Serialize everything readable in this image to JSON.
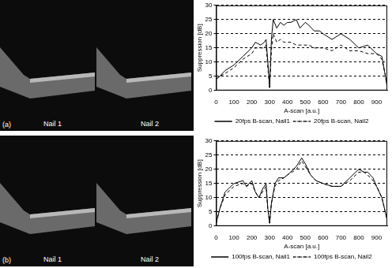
{
  "images": [
    {
      "panel": "(a)",
      "labels": [
        "Nail 1",
        "Nail 2"
      ]
    },
    {
      "panel": "(b)",
      "labels": [
        "Nail 1",
        "Nail 2"
      ]
    }
  ],
  "chart_data": [
    {
      "type": "line",
      "x_label": "A-scan [a.u.]",
      "y_label": "Suppression [dB]",
      "x": [
        0,
        20,
        50,
        100,
        150,
        200,
        220,
        250,
        270,
        280,
        290,
        300,
        310,
        320,
        340,
        360,
        380,
        400,
        420,
        450,
        470,
        500,
        520,
        550,
        580,
        600,
        650,
        700,
        750,
        800,
        850,
        900,
        930,
        950,
        960
      ],
      "series": [
        {
          "name": "20fps B-scan, Nail1",
          "color": "#000000",
          "line_style": "solid",
          "values": [
            4,
            5,
            7,
            9,
            12,
            15,
            17,
            16,
            17,
            18,
            10,
            1,
            18,
            25,
            22,
            24,
            23,
            24,
            24,
            25,
            22,
            24,
            23,
            21,
            21,
            20,
            18,
            20,
            18,
            15,
            16,
            13,
            12,
            5,
            1
          ]
        },
        {
          "name": "20fps B-scan, Nail2",
          "color": "#000000",
          "line_style": "dashed",
          "values": [
            4,
            5,
            6,
            8,
            11,
            13,
            15,
            15,
            15,
            16,
            8,
            1,
            14,
            20,
            17,
            18,
            17,
            17,
            17,
            16,
            16,
            16,
            16,
            15,
            15,
            15,
            14,
            16,
            14,
            14,
            13,
            13,
            11,
            5,
            1
          ]
        }
      ],
      "xlim": [
        0,
        960
      ],
      "xticks": [
        0,
        100,
        200,
        300,
        400,
        500,
        600,
        700,
        800,
        900
      ],
      "ylim": [
        0,
        30
      ],
      "yticks": [
        0,
        5,
        10,
        15,
        20,
        25,
        30
      ],
      "grid": true,
      "legend": "bottom"
    },
    {
      "type": "line",
      "x_label": "A-scan [a.u.]",
      "y_label": "Suppression [dB]",
      "x": [
        0,
        20,
        50,
        100,
        150,
        170,
        200,
        220,
        240,
        260,
        280,
        290,
        300,
        310,
        330,
        350,
        380,
        400,
        450,
        480,
        500,
        530,
        560,
        600,
        650,
        700,
        750,
        800,
        830,
        850,
        880,
        900,
        930,
        960
      ],
      "series": [
        {
          "name": "100fps B-scan, Nail1",
          "color": "#000000",
          "line_style": "solid",
          "values": [
            1,
            6,
            12,
            15,
            16,
            14,
            16,
            12,
            10,
            13,
            15,
            6,
            1,
            8,
            15,
            17,
            17,
            18,
            21,
            24,
            22,
            18,
            16,
            15,
            14,
            14,
            17,
            20,
            19,
            19,
            17,
            14,
            10,
            2
          ]
        },
        {
          "name": "100fps B-scan, Nail2",
          "color": "#000000",
          "line_style": "dashed",
          "values": [
            1,
            6,
            11,
            14,
            15,
            14,
            15,
            12,
            10,
            12,
            14,
            6,
            1,
            8,
            14,
            16,
            17,
            18,
            20,
            23,
            21,
            18,
            16,
            15,
            14,
            14,
            16,
            19,
            19,
            18,
            16,
            14,
            10,
            2
          ]
        }
      ],
      "xlim": [
        0,
        960
      ],
      "xticks": [
        0,
        100,
        200,
        300,
        400,
        500,
        600,
        700,
        800,
        900
      ],
      "ylim": [
        0,
        30
      ],
      "yticks": [
        0,
        5,
        10,
        15,
        20,
        25,
        30
      ],
      "grid": true,
      "legend": "bottom"
    }
  ]
}
